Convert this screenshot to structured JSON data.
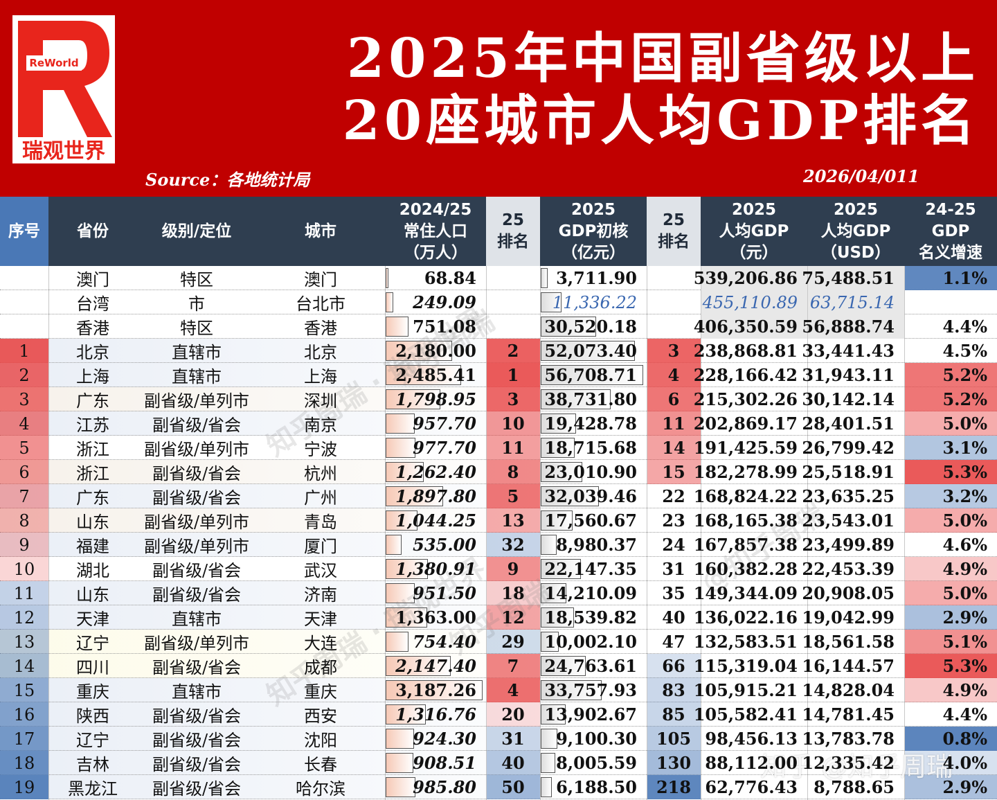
{
  "banner": {
    "logo_text": "ReWorld",
    "logo_letter": "R",
    "brand": "瑞观世界",
    "title_line1": "2025年中国副省级以上",
    "title_line2": "20座城市人均GDP排名",
    "source": "Source：各地统计局",
    "date": "2026/04/011"
  },
  "headers": {
    "seq": "序号",
    "province": "省份",
    "level": "级别/定位",
    "city": "城市",
    "pop": "2024/25\n常住人口\n（万人）",
    "rank_gdp": "25\n排名",
    "gdp": "2025\nGDP初核\n（亿元）",
    "rank_pc": "25\n排名",
    "pc_cny": "2025\n人均GDP\n（元）",
    "pc_usd": "2025\n人均GDP\n（USD）",
    "growth": "24-25\nGDP\n名义增速"
  },
  "colors": {
    "banner": "#c00000",
    "header": "#2f3e50",
    "rank_red": "#f4a3a3",
    "rank_blue": "#a9c0e0"
  },
  "rows": [
    {
      "seq": "",
      "province": "澳门",
      "level": "特区",
      "city": "澳门",
      "pop": "68.84",
      "rank_gdp": "",
      "gdp": "3,711.90",
      "rank_pc": "",
      "pc_cny": "539,206.86",
      "pc_usd": "75,488.51",
      "growth": "1.1%"
    },
    {
      "seq": "",
      "province": "台湾",
      "level": "市",
      "city": "台北市",
      "pop": "249.09",
      "rank_gdp": "",
      "gdp": "11,336.22",
      "rank_pc": "",
      "pc_cny": "455,110.89",
      "pc_usd": "63,715.14",
      "growth": ""
    },
    {
      "seq": "",
      "province": "香港",
      "level": "特区",
      "city": "香港",
      "pop": "751.08",
      "rank_gdp": "",
      "gdp": "30,520.18",
      "rank_pc": "",
      "pc_cny": "406,350.59",
      "pc_usd": "56,888.74",
      "growth": "4.4%"
    },
    {
      "seq": "1",
      "province": "北京",
      "level": "直辖市",
      "city": "北京",
      "pop": "2,180.00",
      "rank_gdp": "2",
      "gdp": "52,073.40",
      "rank_pc": "3",
      "pc_cny": "238,868.81",
      "pc_usd": "33,441.43",
      "growth": "4.5%"
    },
    {
      "seq": "2",
      "province": "上海",
      "level": "直辖市",
      "city": "上海",
      "pop": "2,485.41",
      "rank_gdp": "1",
      "gdp": "56,708.71",
      "rank_pc": "4",
      "pc_cny": "228,166.42",
      "pc_usd": "31,943.11",
      "growth": "5.2%"
    },
    {
      "seq": "3",
      "province": "广东",
      "level": "副省级/单列市",
      "city": "深圳",
      "pop": "1,798.95",
      "rank_gdp": "3",
      "gdp": "38,731.80",
      "rank_pc": "6",
      "pc_cny": "215,302.26",
      "pc_usd": "30,142.14",
      "growth": "5.2%"
    },
    {
      "seq": "4",
      "province": "江苏",
      "level": "副省级/省会",
      "city": "南京",
      "pop": "957.70",
      "rank_gdp": "10",
      "gdp": "19,428.78",
      "rank_pc": "11",
      "pc_cny": "202,869.17",
      "pc_usd": "28,401.51",
      "growth": "5.0%"
    },
    {
      "seq": "5",
      "province": "浙江",
      "level": "副省级/单列市",
      "city": "宁波",
      "pop": "977.70",
      "rank_gdp": "11",
      "gdp": "18,715.68",
      "rank_pc": "14",
      "pc_cny": "191,425.59",
      "pc_usd": "26,799.42",
      "growth": "3.1%"
    },
    {
      "seq": "6",
      "province": "浙江",
      "level": "副省级/省会",
      "city": "杭州",
      "pop": "1,262.40",
      "rank_gdp": "8",
      "gdp": "23,010.90",
      "rank_pc": "15",
      "pc_cny": "182,278.99",
      "pc_usd": "25,518.91",
      "growth": "5.3%"
    },
    {
      "seq": "7",
      "province": "广东",
      "level": "副省级/省会",
      "city": "广州",
      "pop": "1,897.80",
      "rank_gdp": "5",
      "gdp": "32,039.46",
      "rank_pc": "22",
      "pc_cny": "168,824.22",
      "pc_usd": "23,635.25",
      "growth": "3.2%"
    },
    {
      "seq": "8",
      "province": "山东",
      "level": "副省级/单列市",
      "city": "青岛",
      "pop": "1,044.25",
      "rank_gdp": "13",
      "gdp": "17,560.67",
      "rank_pc": "23",
      "pc_cny": "168,165.38",
      "pc_usd": "23,543.01",
      "growth": "5.0%"
    },
    {
      "seq": "9",
      "province": "福建",
      "level": "副省级/单列市",
      "city": "厦门",
      "pop": "535.00",
      "rank_gdp": "32",
      "gdp": "8,980.37",
      "rank_pc": "24",
      "pc_cny": "167,857.38",
      "pc_usd": "23,499.89",
      "growth": "4.6%"
    },
    {
      "seq": "10",
      "province": "湖北",
      "level": "副省级/省会",
      "city": "武汉",
      "pop": "1,380.91",
      "rank_gdp": "9",
      "gdp": "22,147.35",
      "rank_pc": "31",
      "pc_cny": "160,382.28",
      "pc_usd": "22,453.39",
      "growth": "4.9%"
    },
    {
      "seq": "11",
      "province": "山东",
      "level": "副省级/省会",
      "city": "济南",
      "pop": "951.50",
      "rank_gdp": "18",
      "gdp": "14,210.09",
      "rank_pc": "35",
      "pc_cny": "149,344.09",
      "pc_usd": "20,908.05",
      "growth": "5.0%"
    },
    {
      "seq": "12",
      "province": "天津",
      "level": "直辖市",
      "city": "天津",
      "pop": "1,363.00",
      "rank_gdp": "12",
      "gdp": "18,539.82",
      "rank_pc": "40",
      "pc_cny": "136,022.16",
      "pc_usd": "19,042.99",
      "growth": "2.9%"
    },
    {
      "seq": "13",
      "province": "辽宁",
      "level": "副省级/单列市",
      "city": "大连",
      "pop": "754.40",
      "rank_gdp": "29",
      "gdp": "10,002.10",
      "rank_pc": "47",
      "pc_cny": "132,583.51",
      "pc_usd": "18,561.58",
      "growth": "5.1%"
    },
    {
      "seq": "14",
      "province": "四川",
      "level": "副省级/省会",
      "city": "成都",
      "pop": "2,147.40",
      "rank_gdp": "7",
      "gdp": "24,763.61",
      "rank_pc": "66",
      "pc_cny": "115,319.04",
      "pc_usd": "16,144.57",
      "growth": "5.3%"
    },
    {
      "seq": "15",
      "province": "重庆",
      "level": "直辖市",
      "city": "重庆",
      "pop": "3,187.26",
      "rank_gdp": "4",
      "gdp": "33,757.93",
      "rank_pc": "83",
      "pc_cny": "105,915.21",
      "pc_usd": "14,828.04",
      "growth": "4.9%"
    },
    {
      "seq": "16",
      "province": "陕西",
      "level": "副省级/省会",
      "city": "西安",
      "pop": "1,316.76",
      "rank_gdp": "20",
      "gdp": "13,902.67",
      "rank_pc": "85",
      "pc_cny": "105,582.41",
      "pc_usd": "14,781.45",
      "growth": "4.4%"
    },
    {
      "seq": "17",
      "province": "辽宁",
      "level": "副省级/省会",
      "city": "沈阳",
      "pop": "924.30",
      "rank_gdp": "31",
      "gdp": "9,100.30",
      "rank_pc": "105",
      "pc_cny": "98,456.13",
      "pc_usd": "13,783.78",
      "growth": "0.8%"
    },
    {
      "seq": "18",
      "province": "吉林",
      "level": "副省级/省会",
      "city": "长春",
      "pop": "908.51",
      "rank_gdp": "40",
      "gdp": "8,005.59",
      "rank_pc": "130",
      "pc_cny": "88,112.00",
      "pc_usd": "12,335.42",
      "growth": "4.0%"
    },
    {
      "seq": "19",
      "province": "黑龙江",
      "level": "副省级/省会",
      "city": "哈尔滨",
      "pop": "985.80",
      "rank_gdp": "50",
      "gdp": "6,188.50",
      "rank_pc": "218",
      "pc_cny": "62,776.43",
      "pc_usd": "8,788.65",
      "growth": "2.9%"
    }
  ],
  "watermark": "知乎 @知乎周瑞"
}
